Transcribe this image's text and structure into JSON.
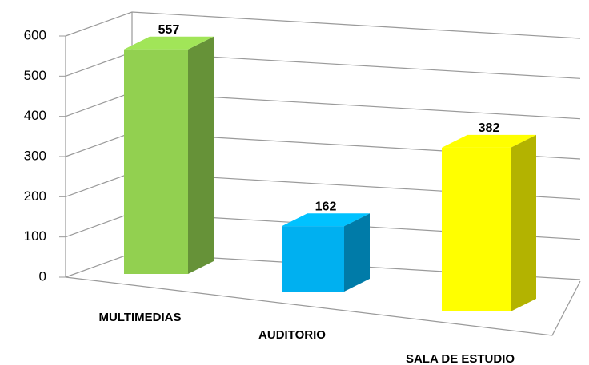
{
  "chart_data": {
    "type": "bar3d",
    "categories": [
      "MULTIMEDIAS",
      "AUDITORIO",
      "SALA DE ESTUDIO"
    ],
    "values": [
      557,
      162,
      382
    ],
    "colors": [
      "#92d050",
      "#00b0f0",
      "#ffff00"
    ],
    "ylim": [
      0,
      600
    ],
    "yticks": [
      0,
      100,
      200,
      300,
      400,
      500,
      600
    ],
    "grid": true
  }
}
